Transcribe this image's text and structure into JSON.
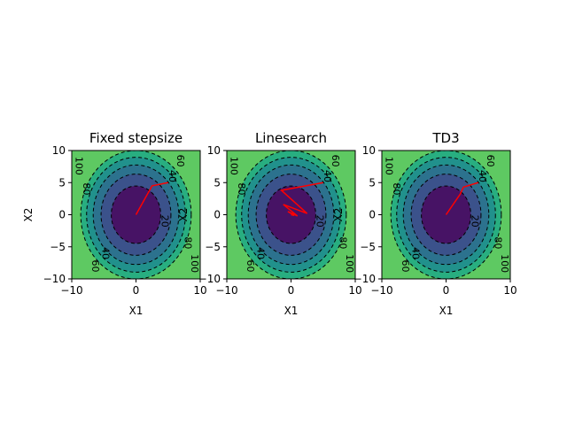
{
  "chart_data": [
    {
      "type": "contour",
      "title": "Fixed stepsize",
      "xlabel": "X1",
      "ylabel": "X2",
      "xlim": [
        -10,
        10
      ],
      "ylim": [
        -10,
        10
      ],
      "xticks": [
        "−10",
        "0",
        "10"
      ],
      "yticks": [
        "10",
        "5",
        "0",
        "−5",
        "−10"
      ],
      "contour_levels": [
        20,
        40,
        60,
        80,
        100
      ],
      "contour_labels": [
        "100",
        "80",
        "60",
        "40",
        "20",
        "40",
        "60",
        "80",
        "100"
      ],
      "path": {
        "color": "#ff0000",
        "points": [
          [
            0,
            0
          ],
          [
            2.5,
            4.5
          ],
          [
            5,
            5
          ]
        ]
      }
    },
    {
      "type": "contour",
      "title": "Linesearch",
      "xlabel": "X1",
      "ylabel": "X2",
      "xlim": [
        -10,
        10
      ],
      "ylim": [
        -10,
        10
      ],
      "xticks": [
        "−10",
        "0",
        "10"
      ],
      "yticks": [
        "10",
        "5",
        "0",
        "−5",
        "−10"
      ],
      "contour_levels": [
        20,
        40,
        60,
        80,
        100
      ],
      "contour_labels": [
        "100",
        "80",
        "60",
        "40",
        "20",
        "40",
        "60",
        "80",
        "100"
      ],
      "path": {
        "color": "#ff0000",
        "points": [
          [
            5,
            5
          ],
          [
            -1.5,
            3.8
          ],
          [
            2.5,
            0.2
          ],
          [
            -1.2,
            1.6
          ],
          [
            1,
            -0.2
          ],
          [
            -0.5,
            0.5
          ],
          [
            0.5,
            -0.1
          ],
          [
            0,
            0
          ]
        ]
      }
    },
    {
      "type": "contour",
      "title": "TD3",
      "xlabel": "X1",
      "ylabel": "X2",
      "xlim": [
        -10,
        10
      ],
      "ylim": [
        -10,
        10
      ],
      "xticks": [
        "−10",
        "0",
        "10"
      ],
      "yticks": [
        "10",
        "5",
        "0",
        "−5",
        "−10"
      ],
      "contour_levels": [
        20,
        40,
        60,
        80,
        100
      ],
      "contour_labels": [
        "100",
        "80",
        "60",
        "40",
        "20",
        "40",
        "60",
        "80",
        "100"
      ],
      "path": {
        "color": "#ff0000",
        "points": [
          [
            0,
            0
          ],
          [
            2.2,
            3.2
          ],
          [
            2.7,
            4.3
          ],
          [
            5,
            5
          ]
        ]
      }
    }
  ],
  "colors": {
    "bands": [
      "#471365",
      "#3b528b",
      "#2c728e",
      "#21918c",
      "#28ae80",
      "#5ec962"
    ],
    "path": "#ff0000"
  }
}
